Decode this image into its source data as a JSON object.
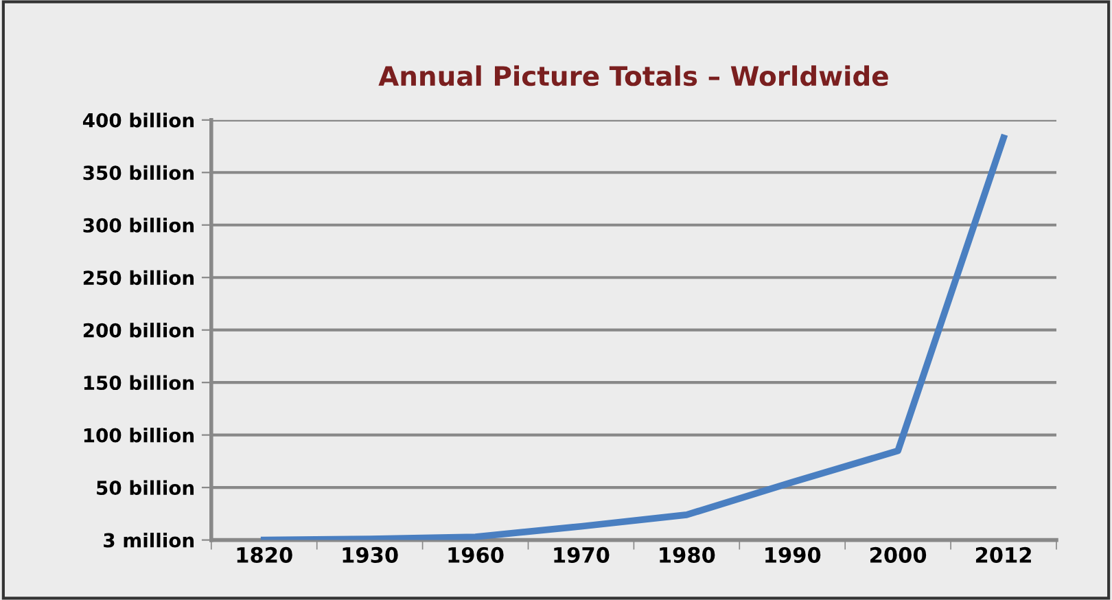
{
  "chart_data": {
    "type": "line",
    "title": "Annual Picture Totals – Worldwide",
    "categories": [
      "1820",
      "1930",
      "1960",
      "1970",
      "1980",
      "1990",
      "2000",
      "2012"
    ],
    "series": [
      {
        "color": "#4a7fc1",
        "values": [
          3000000,
          1000000000,
          3000000000,
          13000000000,
          24000000000,
          55000000000,
          85000000000,
          383000000000
        ]
      }
    ],
    "ylim": [
      0,
      400000000000
    ],
    "yticks": [
      {
        "value": 3000000,
        "label": "3 million"
      },
      {
        "value": 50000000000,
        "label": "50 billion"
      },
      {
        "value": 100000000000,
        "label": "100 billion"
      },
      {
        "value": 150000000000,
        "label": "150 billion"
      },
      {
        "value": 200000000000,
        "label": "200 billion"
      },
      {
        "value": 250000000000,
        "label": "250 billion"
      },
      {
        "value": 300000000000,
        "label": "300 billion"
      },
      {
        "value": 350000000000,
        "label": "350 billion"
      },
      {
        "value": 400000000000,
        "label": "400 billion"
      }
    ],
    "grid": "y",
    "legend": false,
    "marker": "none",
    "line_style": "solid"
  }
}
